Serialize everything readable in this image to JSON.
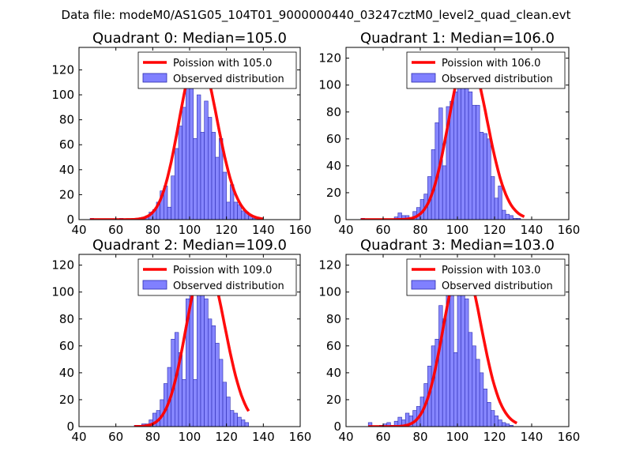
{
  "figure": {
    "suptitle": "Data file: modeM0/AS1G05_104T01_9000000440_03247cztM0_level2_quad_clean.evt"
  },
  "chart_data": [
    {
      "type": "histogram+line",
      "title": "Quadrant 0: Median=105.0",
      "median": 105.0,
      "xlim": [
        40,
        160
      ],
      "ylim": [
        0,
        138
      ],
      "xticks": [
        40,
        60,
        80,
        100,
        120,
        140,
        160
      ],
      "yticks": [
        0,
        20,
        40,
        60,
        80,
        100,
        120
      ],
      "legend_position": "top-right",
      "legend": [
        "Poission with 105.0",
        "Observed distribution"
      ],
      "bin_start": 46,
      "bin_width": 2,
      "counts": [
        1,
        0,
        0,
        0,
        0,
        0,
        0,
        0,
        1,
        0,
        0,
        0,
        0,
        1,
        2,
        3,
        6,
        8,
        14,
        23,
        27,
        10,
        35,
        57,
        75,
        90,
        115,
        105,
        65,
        100,
        70,
        95,
        82,
        70,
        50,
        65,
        38,
        14,
        28,
        14,
        12,
        7,
        6,
        3,
        1,
        0,
        0
      ],
      "curve_peak": 132,
      "curve_color": "#ff0000",
      "bar_color": "#8080ff"
    },
    {
      "type": "histogram+line",
      "title": "Quadrant 1: Median=106.0",
      "median": 106.0,
      "xlim": [
        40,
        160
      ],
      "ylim": [
        0,
        128
      ],
      "xticks": [
        40,
        60,
        80,
        100,
        120,
        140,
        160
      ],
      "yticks": [
        0,
        20,
        40,
        60,
        80,
        100,
        120
      ],
      "legend_position": "top-right",
      "legend": [
        "Poission with 106.0",
        "Observed distribution"
      ],
      "bin_start": 48,
      "bin_width": 2,
      "counts": [
        1,
        0,
        0,
        0,
        0,
        0,
        0,
        0,
        0,
        2,
        5,
        3,
        3,
        1,
        6,
        9,
        15,
        19,
        32,
        52,
        72,
        83,
        40,
        84,
        88,
        95,
        120,
        108,
        110,
        95,
        85,
        85,
        65,
        64,
        60,
        32,
        16,
        25,
        7,
        4,
        3,
        1,
        1,
        0
      ],
      "curve_peak": 122,
      "curve_color": "#ff0000",
      "bar_color": "#8080ff"
    },
    {
      "type": "histogram+line",
      "title": "Quadrant 2: Median=109.0",
      "median": 109.0,
      "xlim": [
        40,
        160
      ],
      "ylim": [
        0,
        128
      ],
      "xticks": [
        40,
        60,
        80,
        100,
        120,
        140,
        160
      ],
      "yticks": [
        0,
        20,
        40,
        60,
        80,
        100,
        120
      ],
      "legend_position": "top-right",
      "legend": [
        "Poission with 109.0",
        "Observed distribution"
      ],
      "bin_start": 70,
      "bin_width": 2,
      "counts": [
        1,
        1,
        2,
        2,
        5,
        10,
        12,
        20,
        32,
        44,
        65,
        70,
        55,
        35,
        95,
        115,
        35,
        105,
        110,
        95,
        80,
        75,
        62,
        50,
        33,
        22,
        12,
        10,
        7,
        5,
        3
      ],
      "curve_peak": 123,
      "curve_color": "#ff0000",
      "bar_color": "#8080ff"
    },
    {
      "type": "histogram+line",
      "title": "Quadrant 3: Median=103.0",
      "median": 103.0,
      "xlim": [
        40,
        160
      ],
      "ylim": [
        0,
        128
      ],
      "xticks": [
        40,
        60,
        80,
        100,
        120,
        140,
        160
      ],
      "yticks": [
        0,
        20,
        40,
        60,
        80,
        100,
        120
      ],
      "legend_position": "top-right",
      "legend": [
        "Poission with 103.0",
        "Observed distribution"
      ],
      "bin_start": 52,
      "bin_width": 2,
      "counts": [
        3,
        0,
        0,
        1,
        2,
        3,
        1,
        4,
        7,
        5,
        10,
        8,
        12,
        15,
        22,
        32,
        45,
        60,
        65,
        90,
        80,
        105,
        120,
        55,
        108,
        100,
        95,
        70,
        60,
        50,
        40,
        28,
        18,
        12,
        8,
        5,
        3,
        2,
        1,
        0
      ],
      "curve_peak": 123,
      "curve_color": "#ff0000",
      "bar_color": "#8080ff"
    }
  ]
}
